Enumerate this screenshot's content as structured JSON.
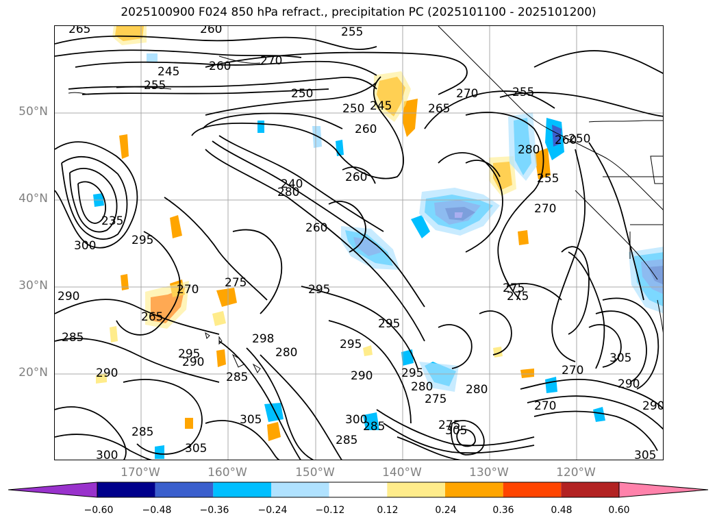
{
  "title": "2025100900 F024 850 hPa refract., precipitation PC (2025101100 - 2025101200)",
  "lat_labels": [
    {
      "text": "50°N",
      "lat": 50
    },
    {
      "text": "40°N",
      "lat": 40
    },
    {
      "text": "30°N",
      "lat": 30
    },
    {
      "text": "20°N",
      "lat": 20
    }
  ],
  "lon_labels": [
    {
      "text": "170°W",
      "lon": -170
    },
    {
      "text": "160°W",
      "lon": -160
    },
    {
      "text": "150°W",
      "lon": -150
    },
    {
      "text": "140°W",
      "lon": -140
    },
    {
      "text": "130°W",
      "lon": -130
    },
    {
      "text": "120°W",
      "lon": -120
    }
  ],
  "colorbar": {
    "ticks": [
      "−0.60",
      "−0.48",
      "−0.36",
      "−0.24",
      "−0.12",
      "0.12",
      "0.24",
      "0.36",
      "0.48",
      "0.60"
    ],
    "colors": [
      "#9932cc",
      "#00008b",
      "#3a5fcd",
      "#00bfff",
      "#b0e2ff",
      "#ffffff",
      "#ffec8b",
      "#ffa500",
      "#ff4500",
      "#b22222",
      "#ff82ab"
    ]
  },
  "contour_labels": [
    "265",
    "260",
    "270",
    "255",
    "245",
    "250",
    "260",
    "255",
    "245",
    "250",
    "265",
    "270",
    "255",
    "250",
    "260",
    "260",
    "240",
    "260",
    "280",
    "260",
    "280",
    "255",
    "270",
    "275",
    "275",
    "235",
    "295",
    "300",
    "290",
    "285",
    "265",
    "270",
    "275",
    "295",
    "295",
    "280",
    "295",
    "298",
    "295",
    "290",
    "290",
    "285",
    "290",
    "280",
    "305",
    "270",
    "295",
    "300",
    "285",
    "285",
    "275",
    "300",
    "305",
    "285",
    "305",
    "280",
    "275",
    "290",
    "305",
    "305",
    "290",
    "270"
  ],
  "colors": {
    "contour": "#000000",
    "grid": "#a9a9a9",
    "coast": "#000000"
  }
}
